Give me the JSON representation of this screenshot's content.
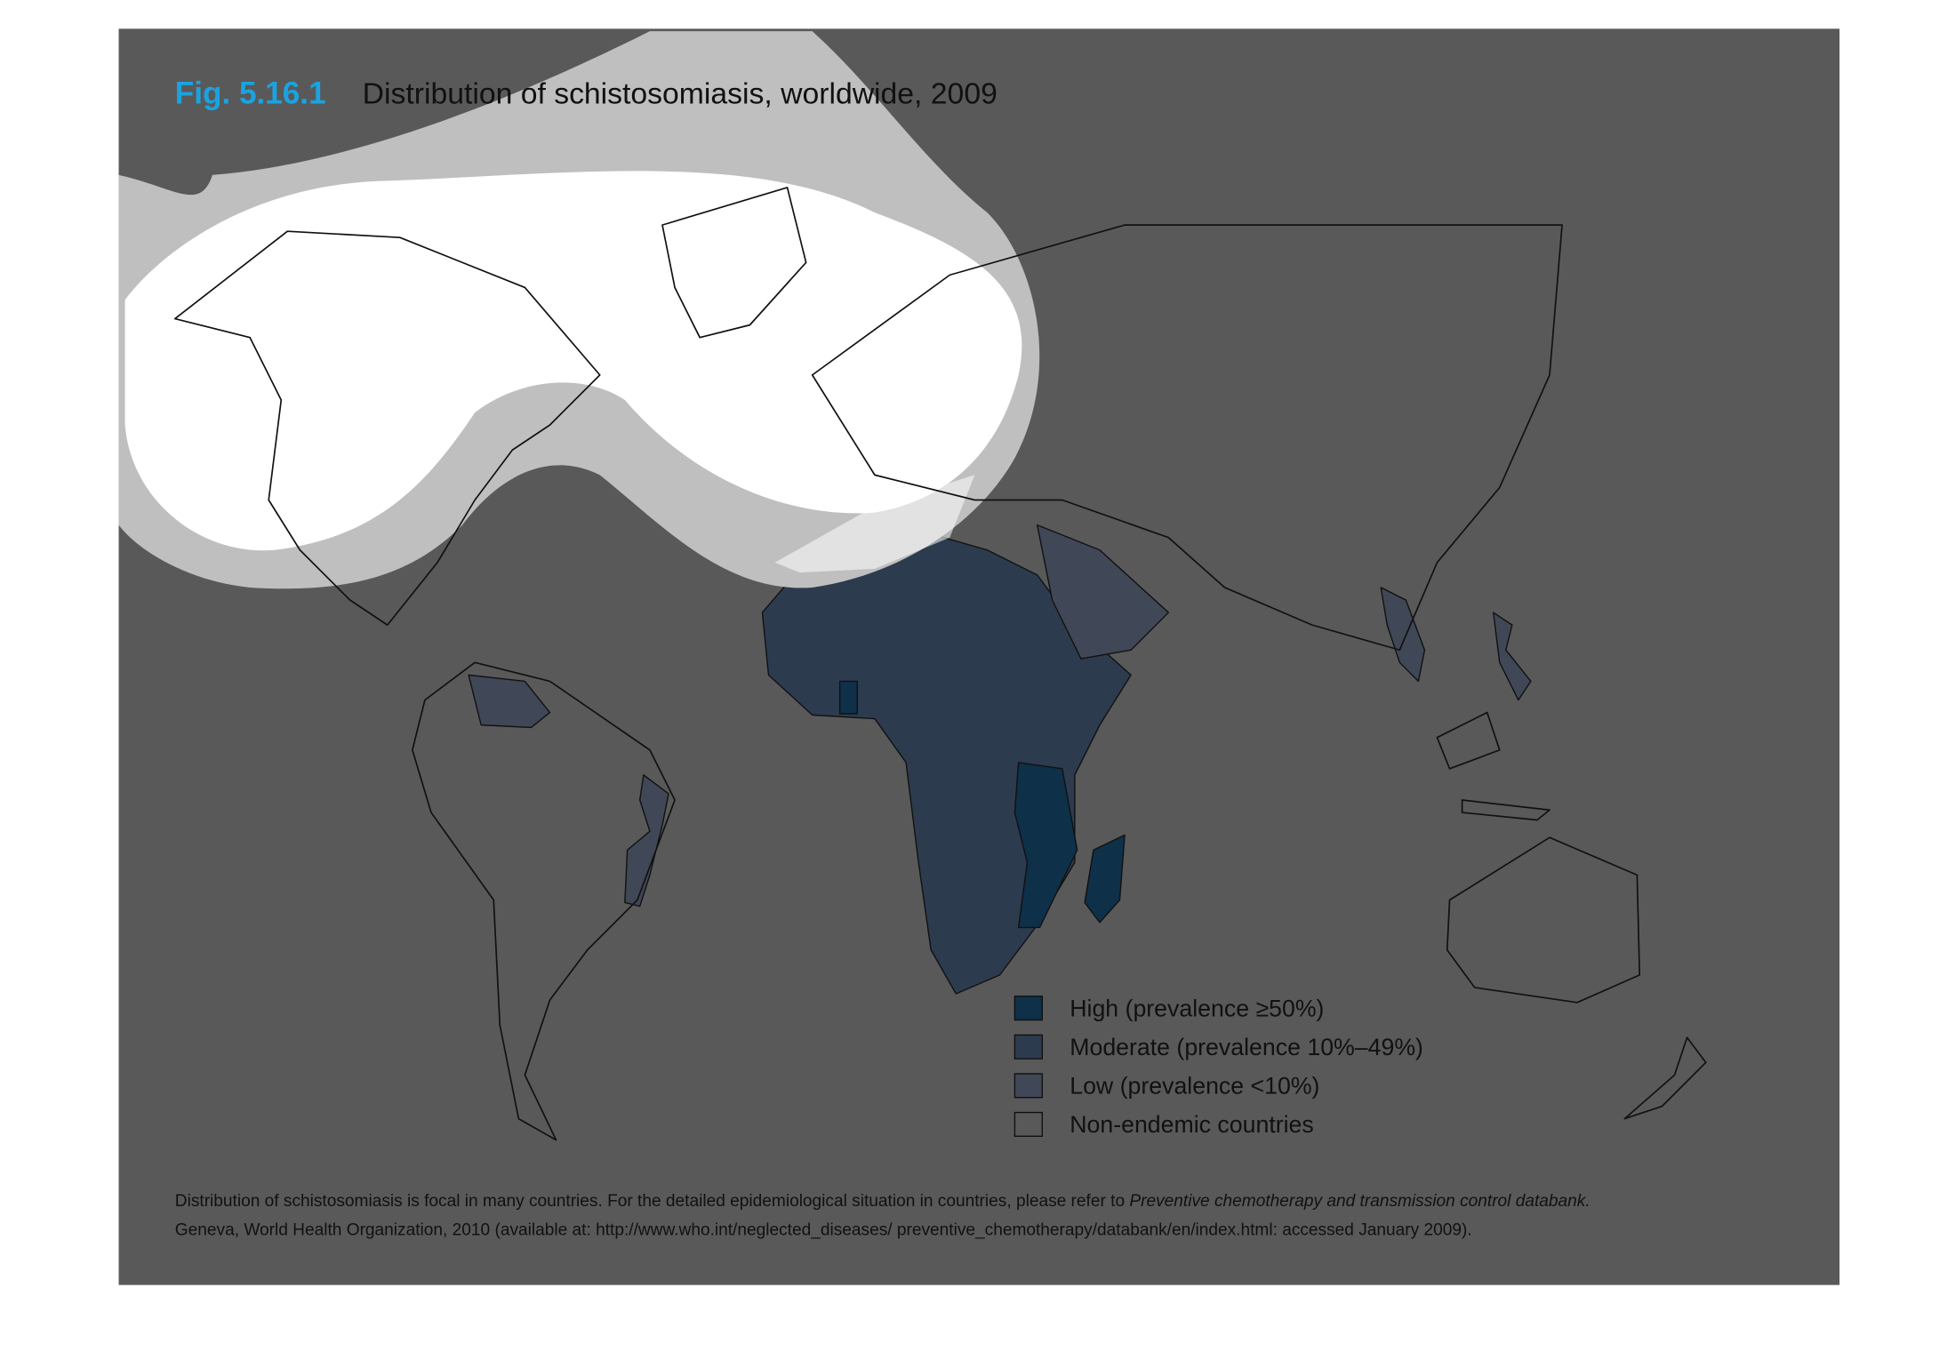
{
  "figure": {
    "label": "Fig. 5.16.1",
    "title": "Distribution of schistosomiasis, worldwide, 2009"
  },
  "legend": [
    {
      "label": "High (prevalence ≥50%)",
      "color": "#0e3049"
    },
    {
      "label": "Moderate (prevalence 10%–49%)",
      "color": "#2d3b4f"
    },
    {
      "label": "Low (prevalence <10%)",
      "color": "#404756"
    },
    {
      "label": "Non-endemic countries",
      "color": "#595959"
    }
  ],
  "footnote": {
    "line1": "Distribution of schistosomiasis is focal in many countries. For the detailed epidemiological situation in countries, please refer to ",
    "line1_italic": "Preventive chemotherapy and transmission control databank.",
    "line2": "Geneva, World Health Organization, 2010 (available at: http://www.who.int/neglected_diseases/ preventive_chemotherapy/databank/en/index.html: accessed January 2009)."
  }
}
